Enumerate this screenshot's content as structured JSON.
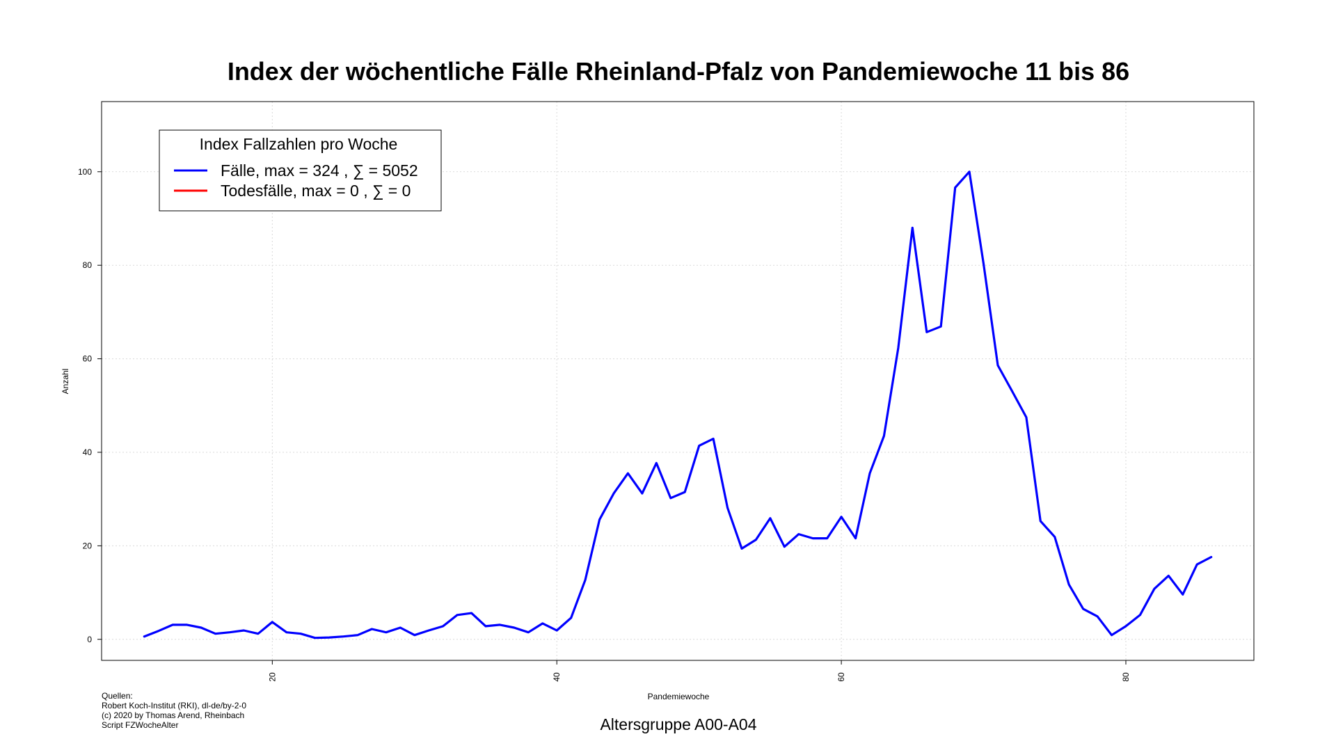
{
  "chart_data": {
    "type": "line",
    "title": "Index der wöchentliche Fälle Rheinland-Pfalz von Pandemiewoche 11 bis 86",
    "xlabel": "Pandemiewoche",
    "ylabel": "Anzahl",
    "subtitle": "Altersgruppe A00-A04",
    "xlim": [
      8,
      89
    ],
    "ylim": [
      -4.5,
      115
    ],
    "x_ticks": [
      20,
      40,
      60,
      80
    ],
    "y_ticks": [
      0,
      20,
      40,
      60,
      80,
      100
    ],
    "grid": true,
    "legend": {
      "title": "Index Fallzahlen pro Woche",
      "placement": "top-left",
      "entries": [
        {
          "label": "Fälle, max = 324 ,  ∑  = 5052",
          "color": "#0000ff"
        },
        {
          "label": "Todesfälle, max = 0 ,  ∑  = 0",
          "color": "#ff0000"
        }
      ]
    },
    "series": [
      {
        "name": "Fälle",
        "color": "#0000ff",
        "x": [
          11,
          12,
          13,
          14,
          15,
          16,
          17,
          18,
          19,
          20,
          21,
          22,
          23,
          24,
          25,
          26,
          27,
          28,
          29,
          30,
          31,
          32,
          33,
          34,
          35,
          36,
          37,
          38,
          39,
          40,
          41,
          42,
          43,
          44,
          45,
          46,
          47,
          48,
          49,
          50,
          51,
          52,
          53,
          54,
          55,
          56,
          57,
          58,
          59,
          60,
          61,
          62,
          63,
          64,
          65,
          66,
          67,
          68,
          69,
          70,
          71,
          72,
          73,
          74,
          75,
          76,
          77,
          78,
          79,
          80,
          81,
          82,
          83,
          84,
          85,
          86
        ],
        "y": [
          0.6,
          1.8,
          3.1,
          3.1,
          2.5,
          1.2,
          1.5,
          1.9,
          1.2,
          3.7,
          1.5,
          1.2,
          0.3,
          0.4,
          0.6,
          0.9,
          2.2,
          1.5,
          2.5,
          0.9,
          1.9,
          2.8,
          5.2,
          5.6,
          2.8,
          3.1,
          2.5,
          1.5,
          3.4,
          1.9,
          4.6,
          12.7,
          25.6,
          31.2,
          35.5,
          31.2,
          37.7,
          30.2,
          31.5,
          41.4,
          42.9,
          28.1,
          19.4,
          21.3,
          25.9,
          19.8,
          22.5,
          21.6,
          21.6,
          26.2,
          21.6,
          35.5,
          43.5,
          62.3,
          88.0,
          65.7,
          66.9,
          96.6,
          100.0,
          80.2,
          58.6,
          53.1,
          47.5,
          25.3,
          21.9,
          11.7,
          6.5,
          4.9,
          0.9,
          2.8,
          5.2,
          10.8,
          13.6,
          9.6,
          16.0,
          17.6
        ]
      },
      {
        "name": "Todesfälle",
        "color": "#ff0000",
        "x": [],
        "y": []
      }
    ],
    "caption": {
      "lines": [
        "Quellen:",
        "Robert Koch-Institut (RKI), dl-de/by-2-0",
        "(c) 2020 by Thomas Arend, Rheinbach",
        "Script FZWocheAlter"
      ]
    }
  }
}
